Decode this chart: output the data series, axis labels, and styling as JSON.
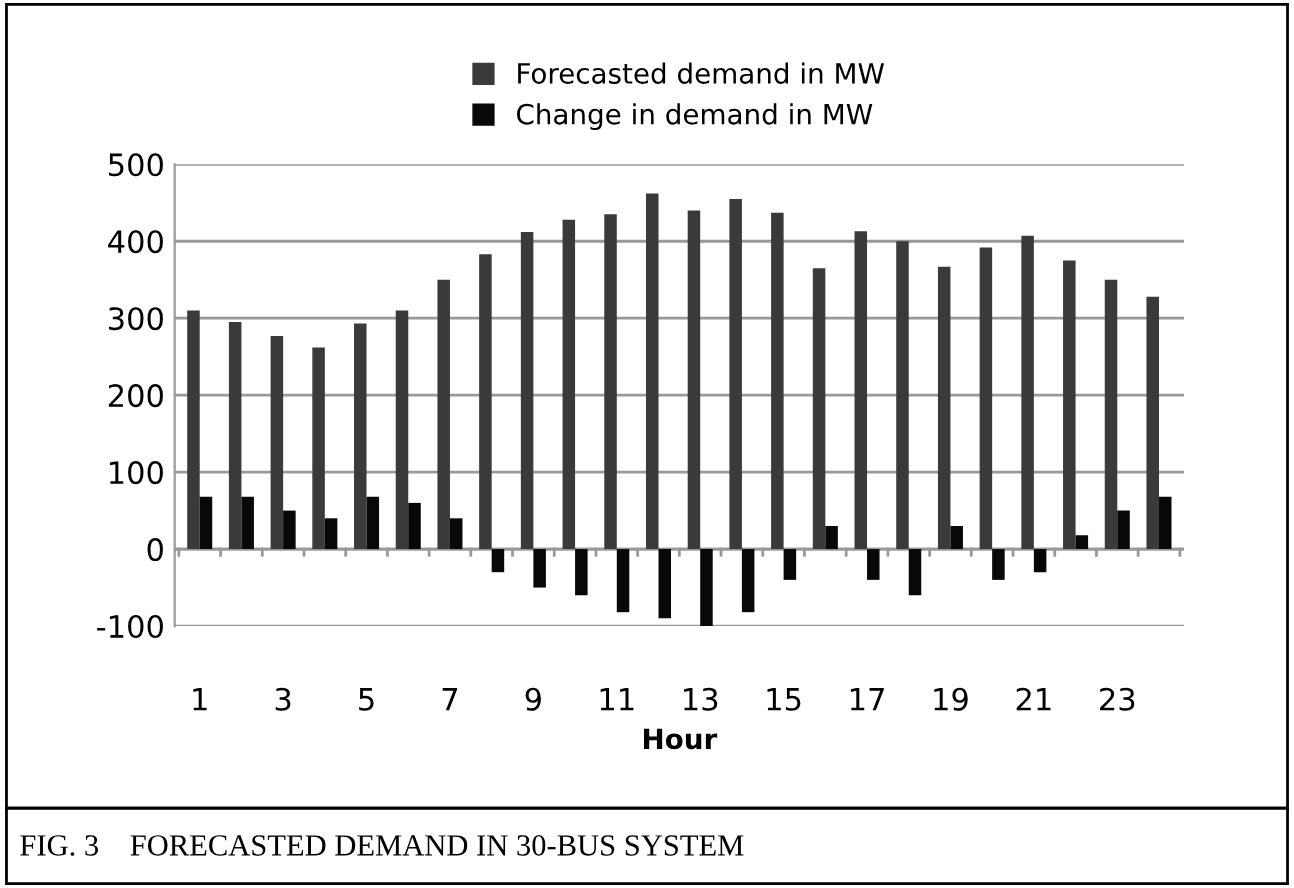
{
  "chart_data": {
    "type": "bar",
    "xlabel": "Hour",
    "categories": [
      "1",
      null,
      "3",
      null,
      "5",
      null,
      "7",
      null,
      "9",
      null,
      "11",
      null,
      "13",
      null,
      "15",
      null,
      "17",
      null,
      "19",
      null,
      "21",
      null,
      "23",
      null
    ],
    "series": [
      {
        "name": "Forecasted demand in MW",
        "color": "#3a3a3a",
        "values": [
          310,
          295,
          277,
          262,
          293,
          310,
          350,
          383,
          412,
          428,
          435,
          462,
          440,
          455,
          437,
          365,
          413,
          400,
          367,
          392,
          407,
          375,
          350,
          328
        ]
      },
      {
        "name": "Change in demand in MW",
        "color": "#080808",
        "values": [
          68,
          68,
          50,
          40,
          68,
          60,
          40,
          -30,
          -50,
          -60,
          -82,
          -90,
          -100,
          -82,
          -40,
          30,
          -40,
          -60,
          30,
          -40,
          -30,
          18,
          50,
          68
        ]
      }
    ],
    "ylim": [
      -100,
      500
    ],
    "yticks": [
      -100,
      0,
      100,
      200,
      300,
      400,
      500
    ],
    "grid": "y",
    "legend": "top",
    "annotations": [
      "FIG. 3    FORECASTED DEMAND IN 30-BUS SYSTEM"
    ]
  }
}
